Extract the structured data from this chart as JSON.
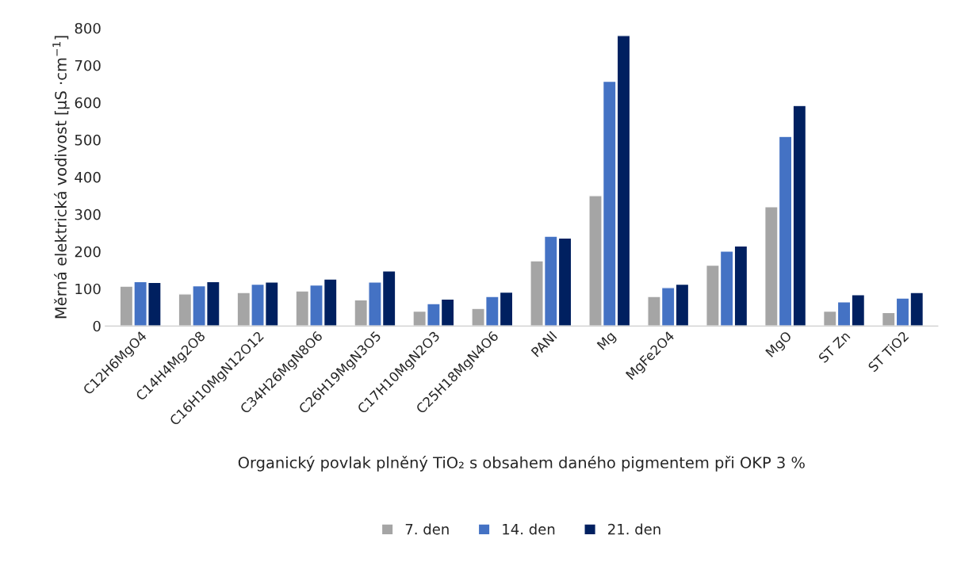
{
  "chart_data": {
    "type": "bar",
    "xlabel": "Organický povlak plněný TiO₂ s obsahem daného pigmentem při OKP 3 %",
    "ylabel": "Měrná elektrická vodivost [µS ·cm$^{−1}$]",
    "categories": [
      "C12H6MgO4",
      "C14H4Mg2O8",
      "C16H10MgN12O12",
      "C34H26MgN8O6",
      "C26H19MgN3O5",
      "C17H10MgN2O3",
      "C25H18MgN4O6",
      "PANI",
      "Mg",
      "MgFe2O4",
      null,
      "MgO",
      "ST Zn",
      "ST TiO2"
    ],
    "series": [
      {
        "name": "7. den",
        "color": "#a5a5a5",
        "values": [
          107,
          86,
          90,
          94,
          70,
          40,
          47,
          175,
          350,
          79,
          163,
          320,
          40,
          36
        ]
      },
      {
        "name": "14. den",
        "color": "#4472c4",
        "values": [
          119,
          108,
          112,
          110,
          118,
          60,
          79,
          241,
          657,
          103,
          201,
          509,
          65,
          75
        ]
      },
      {
        "name": "21. den",
        "color": "#002060",
        "values": [
          117,
          119,
          118,
          126,
          148,
          72,
          91,
          236,
          780,
          112,
          215,
          592,
          84,
          90
        ]
      }
    ],
    "ylim": [
      0,
      800
    ],
    "yticks": [
      0,
      100,
      200,
      300,
      400,
      500,
      600,
      700,
      800
    ],
    "legend": "bottom"
  }
}
